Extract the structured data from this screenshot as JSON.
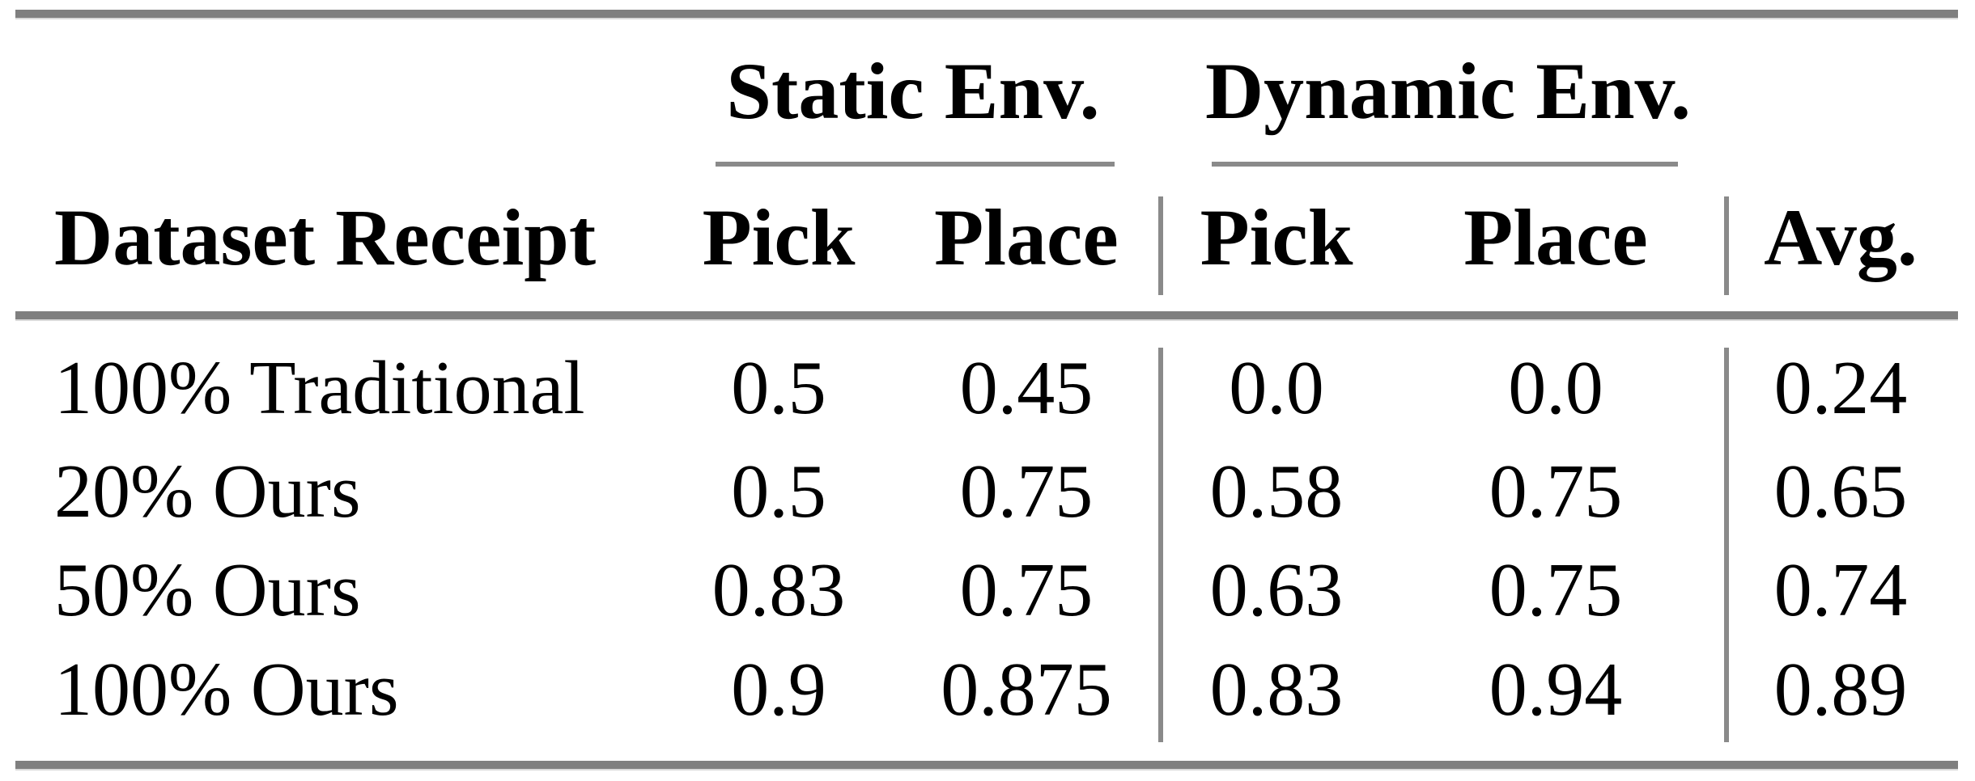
{
  "colors": {
    "background": "#ffffff",
    "text": "#000000",
    "thick_rule": "#7f7f7f",
    "thin_rule": "#8a8a8a"
  },
  "table": {
    "groups": [
      {
        "label": "Static Env."
      },
      {
        "label": "Dynamic Env."
      }
    ],
    "headers": {
      "dataset": "Dataset Receipt",
      "static_pick": "Pick",
      "static_place": "Place",
      "dynamic_pick": "Pick",
      "dynamic_place": "Place",
      "avg": "Avg."
    },
    "rows": [
      {
        "label": "100% Traditional",
        "static_pick": "0.5",
        "static_place": "0.45",
        "dynamic_pick": "0.0",
        "dynamic_place": "0.0",
        "avg": "0.24"
      },
      {
        "label": "20% Ours",
        "static_pick": "0.5",
        "static_place": "0.75",
        "dynamic_pick": "0.58",
        "dynamic_place": "0.75",
        "avg": "0.65"
      },
      {
        "label": "50% Ours",
        "static_pick": "0.83",
        "static_place": "0.75",
        "dynamic_pick": "0.63",
        "dynamic_place": "0.75",
        "avg": "0.74"
      },
      {
        "label": "100% Ours",
        "static_pick": "0.9",
        "static_place": "0.875",
        "dynamic_pick": "0.83",
        "dynamic_place": "0.94",
        "avg": "0.89"
      }
    ]
  },
  "chart_data": {
    "type": "table",
    "title": "",
    "column_groups": [
      "",
      "Static Env.",
      "Static Env.",
      "Dynamic Env.",
      "Dynamic Env.",
      ""
    ],
    "columns": [
      "Dataset Receipt",
      "Pick",
      "Place",
      "Pick",
      "Place",
      "Avg."
    ],
    "rows": [
      [
        "100% Traditional",
        0.5,
        0.45,
        0.0,
        0.0,
        0.24
      ],
      [
        "20% Ours",
        0.5,
        0.75,
        0.58,
        0.75,
        0.65
      ],
      [
        "50% Ours",
        0.83,
        0.75,
        0.63,
        0.75,
        0.74
      ],
      [
        "100% Ours",
        0.9,
        0.875,
        0.83,
        0.94,
        0.89
      ]
    ]
  }
}
